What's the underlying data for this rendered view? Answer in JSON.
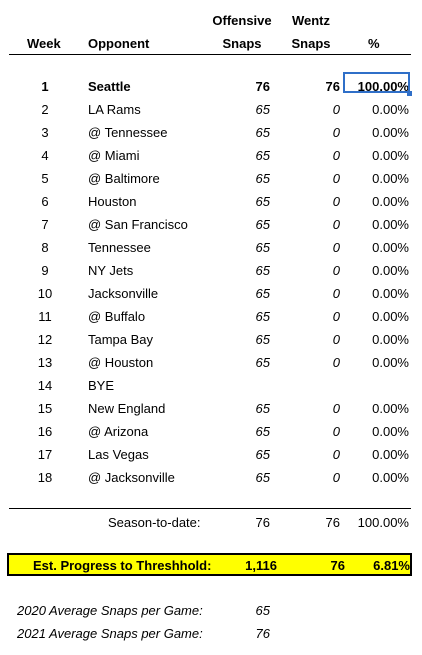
{
  "headers": {
    "week": "Week",
    "opponent": "Opponent",
    "offensive_line1": "Offensive",
    "offensive_line2": "Snaps",
    "wentz_line1": "Wentz",
    "wentz_line2": "Snaps",
    "pct": "%"
  },
  "rows": [
    {
      "week": "1",
      "opponent": "Seattle",
      "off": "76",
      "wentz": "76",
      "pct": "100.00%"
    },
    {
      "week": "2",
      "opponent": "LA Rams",
      "off": "65",
      "wentz": "0",
      "pct": "0.00%"
    },
    {
      "week": "3",
      "opponent": "@ Tennessee",
      "off": "65",
      "wentz": "0",
      "pct": "0.00%"
    },
    {
      "week": "4",
      "opponent": "@ Miami",
      "off": "65",
      "wentz": "0",
      "pct": "0.00%"
    },
    {
      "week": "5",
      "opponent": "@ Baltimore",
      "off": "65",
      "wentz": "0",
      "pct": "0.00%"
    },
    {
      "week": "6",
      "opponent": "Houston",
      "off": "65",
      "wentz": "0",
      "pct": "0.00%"
    },
    {
      "week": "7",
      "opponent": "@ San Francisco",
      "off": "65",
      "wentz": "0",
      "pct": "0.00%"
    },
    {
      "week": "8",
      "opponent": "Tennessee",
      "off": "65",
      "wentz": "0",
      "pct": "0.00%"
    },
    {
      "week": "9",
      "opponent": "NY Jets",
      "off": "65",
      "wentz": "0",
      "pct": "0.00%"
    },
    {
      "week": "10",
      "opponent": "Jacksonville",
      "off": "65",
      "wentz": "0",
      "pct": "0.00%"
    },
    {
      "week": "11",
      "opponent": "@ Buffalo",
      "off": "65",
      "wentz": "0",
      "pct": "0.00%"
    },
    {
      "week": "12",
      "opponent": "Tampa Bay",
      "off": "65",
      "wentz": "0",
      "pct": "0.00%"
    },
    {
      "week": "13",
      "opponent": "@ Houston",
      "off": "65",
      "wentz": "0",
      "pct": "0.00%"
    },
    {
      "week": "14",
      "opponent": "BYE",
      "off": "",
      "wentz": "",
      "pct": ""
    },
    {
      "week": "15",
      "opponent": "New England",
      "off": "65",
      "wentz": "0",
      "pct": "0.00%"
    },
    {
      "week": "16",
      "opponent": "@ Arizona",
      "off": "65",
      "wentz": "0",
      "pct": "0.00%"
    },
    {
      "week": "17",
      "opponent": "Las Vegas",
      "off": "65",
      "wentz": "0",
      "pct": "0.00%"
    },
    {
      "week": "18",
      "opponent": "@ Jacksonville",
      "off": "65",
      "wentz": "0",
      "pct": "0.00%"
    }
  ],
  "season": {
    "label": "Season-to-date:",
    "off": "76",
    "wentz": "76",
    "pct": "100.00%"
  },
  "progress": {
    "label": "Est. Progress to Threshhold:",
    "off": "1,116",
    "wentz": "76",
    "pct": "6.81%",
    "highlight_color": "#ffff00"
  },
  "averages": [
    {
      "label": "2020 Average Snaps per Game:",
      "value": "65"
    },
    {
      "label": "2021 Average Snaps per Game:",
      "value": "76"
    }
  ],
  "selection_color": "#2f6fc8"
}
